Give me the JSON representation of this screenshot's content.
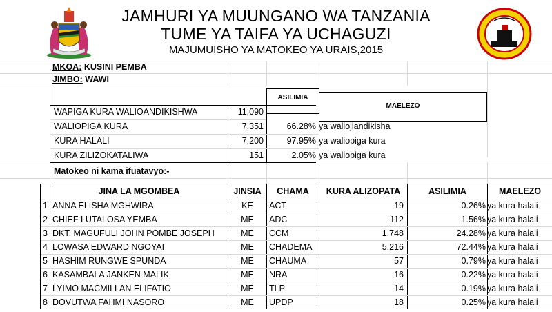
{
  "header": {
    "line1": "JAMHURI YA MUUNGANO WA TANZANIA",
    "line2": "TUME YA TAIFA YA UCHAGUZI",
    "line3": "MAJUMUISHO YA MATOKEO YA URAIS,2015"
  },
  "location": {
    "mkoa_label": "MKOA:",
    "mkoa_value": "KUSINI PEMBA",
    "jimbo_label": "JIMBO:",
    "jimbo_value": "WAWI"
  },
  "summary": {
    "col_asilimia": "ASILIMIA",
    "col_maelezo": "MAELEZO",
    "rows": [
      {
        "label": "WAPIGA KURA WALIOANDIKISHWA",
        "value": "11,090",
        "percent": "",
        "note": ""
      },
      {
        "label": "WALIOPIGA KURA",
        "value": "7,351",
        "percent": "66.28%",
        "note": "ya waliojiandikisha"
      },
      {
        "label": "KURA HALALI",
        "value": "7,200",
        "percent": "97.95%",
        "note": "ya waliopiga kura"
      },
      {
        "label": "KURA ZILIZOKATALIWA",
        "value": "151",
        "percent": "2.05%",
        "note": "ya waliopiga kura"
      }
    ]
  },
  "results_intro": "Matokeo ni kama ifuatavyo:-",
  "results": {
    "headers": {
      "name": "JINA LA MGOMBEA",
      "gender": "JINSIA",
      "party": "CHAMA",
      "votes": "KURA ALIZOPATA",
      "percent": "ASILIMIA",
      "note": "MAELEZO"
    },
    "rows": [
      {
        "n": "1",
        "name": "ANNA ELISHA MGHWIRA",
        "gender": "KE",
        "party": "ACT",
        "votes": "19",
        "percent": "0.26%",
        "note": "ya kura halali"
      },
      {
        "n": "2",
        "name": "CHIEF LUTALOSA YEMBA",
        "gender": "ME",
        "party": "ADC",
        "votes": "112",
        "percent": "1.56%",
        "note": "ya kura halali"
      },
      {
        "n": "3",
        "name": "DKT. MAGUFULI JOHN POMBE JOSEPH",
        "gender": "ME",
        "party": "CCM",
        "votes": "1,748",
        "percent": "24.28%",
        "note": "ya kura halali"
      },
      {
        "n": "4",
        "name": "LOWASA EDWARD NGOYAI",
        "gender": "ME",
        "party": "CHADEMA",
        "votes": "5,216",
        "percent": "72.44%",
        "note": "ya kura halali"
      },
      {
        "n": "5",
        "name": "HASHIM RUNGWE SPUNDA",
        "gender": "ME",
        "party": "CHAUMA",
        "votes": "57",
        "percent": "0.79%",
        "note": "ya kura halali"
      },
      {
        "n": "6",
        "name": "KASAMBALA JANKEN MALIK",
        "gender": "ME",
        "party": "NRA",
        "votes": "16",
        "percent": "0.22%",
        "note": "ya kura halali"
      },
      {
        "n": "7",
        "name": "LYIMO MACMILLAN ELIFATIO",
        "gender": "ME",
        "party": "TLP",
        "votes": "14",
        "percent": "0.19%",
        "note": "ya kura halali"
      },
      {
        "n": "8",
        "name": "DOVUTWA FAHMI NASORO",
        "gender": "ME",
        "party": "UPDP",
        "votes": "18",
        "percent": "0.25%",
        "note": "ya kura halali"
      }
    ]
  }
}
